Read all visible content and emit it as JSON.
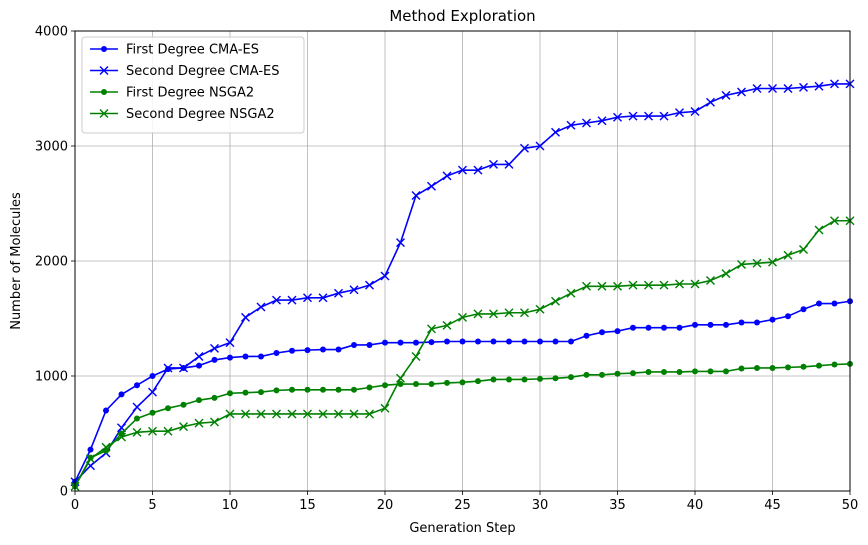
{
  "chart_data": {
    "type": "line",
    "title": "Method Exploration",
    "xlabel": "Generation Step",
    "ylabel": "Number of Molecules",
    "xlim": [
      0,
      50
    ],
    "ylim": [
      0,
      4000
    ],
    "xticks": [
      0,
      5,
      10,
      15,
      20,
      25,
      30,
      35,
      40,
      45,
      50
    ],
    "yticks": [
      0,
      1000,
      2000,
      3000,
      4000
    ],
    "grid": true,
    "legend_position": "top-left",
    "x": [
      0,
      1,
      2,
      3,
      4,
      5,
      6,
      7,
      8,
      9,
      10,
      11,
      12,
      13,
      14,
      15,
      16,
      17,
      18,
      19,
      20,
      21,
      22,
      23,
      24,
      25,
      26,
      27,
      28,
      29,
      30,
      31,
      32,
      33,
      34,
      35,
      36,
      37,
      38,
      39,
      40,
      41,
      42,
      43,
      44,
      45,
      46,
      47,
      48,
      49,
      50
    ],
    "series": [
      {
        "name": "First Degree CMA-ES",
        "color": "#0000ff",
        "marker": "dot",
        "values": [
          80,
          360,
          700,
          840,
          920,
          1000,
          1060,
          1070,
          1090,
          1140,
          1160,
          1170,
          1170,
          1200,
          1220,
          1225,
          1230,
          1230,
          1270,
          1270,
          1290,
          1290,
          1290,
          1295,
          1300,
          1300,
          1300,
          1300,
          1300,
          1300,
          1300,
          1300,
          1300,
          1350,
          1380,
          1390,
          1420,
          1420,
          1420,
          1420,
          1445,
          1445,
          1445,
          1465,
          1465,
          1490,
          1520,
          1580,
          1630,
          1630,
          1650
        ]
      },
      {
        "name": "Second Degree CMA-ES",
        "color": "#0000ff",
        "marker": "x",
        "values": [
          80,
          220,
          330,
          550,
          730,
          860,
          1070,
          1070,
          1170,
          1240,
          1290,
          1510,
          1600,
          1660,
          1660,
          1680,
          1680,
          1720,
          1750,
          1790,
          1870,
          2160,
          2570,
          2650,
          2740,
          2790,
          2790,
          2840,
          2840,
          2980,
          3000,
          3120,
          3180,
          3200,
          3220,
          3250,
          3260,
          3260,
          3260,
          3290,
          3300,
          3380,
          3440,
          3470,
          3500,
          3500,
          3500,
          3510,
          3520,
          3540,
          3540
        ]
      },
      {
        "name": "First Degree NSGA2",
        "color": "#008000",
        "marker": "dot",
        "values": [
          40,
          290,
          350,
          500,
          630,
          680,
          720,
          750,
          790,
          810,
          850,
          855,
          860,
          875,
          880,
          880,
          880,
          880,
          880,
          900,
          920,
          930,
          930,
          930,
          940,
          945,
          955,
          970,
          970,
          970,
          975,
          980,
          990,
          1010,
          1010,
          1020,
          1025,
          1035,
          1035,
          1035,
          1040,
          1040,
          1040,
          1065,
          1070,
          1070,
          1075,
          1080,
          1090,
          1100,
          1105
        ]
      },
      {
        "name": "Second Degree NSGA2",
        "color": "#008000",
        "marker": "x",
        "values": [
          40,
          280,
          380,
          470,
          510,
          520,
          520,
          560,
          590,
          600,
          670,
          670,
          670,
          670,
          670,
          670,
          670,
          670,
          670,
          670,
          720,
          980,
          1170,
          1410,
          1440,
          1510,
          1540,
          1540,
          1550,
          1550,
          1580,
          1650,
          1720,
          1780,
          1780,
          1780,
          1790,
          1790,
          1790,
          1800,
          1800,
          1830,
          1890,
          1970,
          1980,
          1990,
          2050,
          2100,
          2270,
          2350,
          2350
        ]
      }
    ]
  }
}
